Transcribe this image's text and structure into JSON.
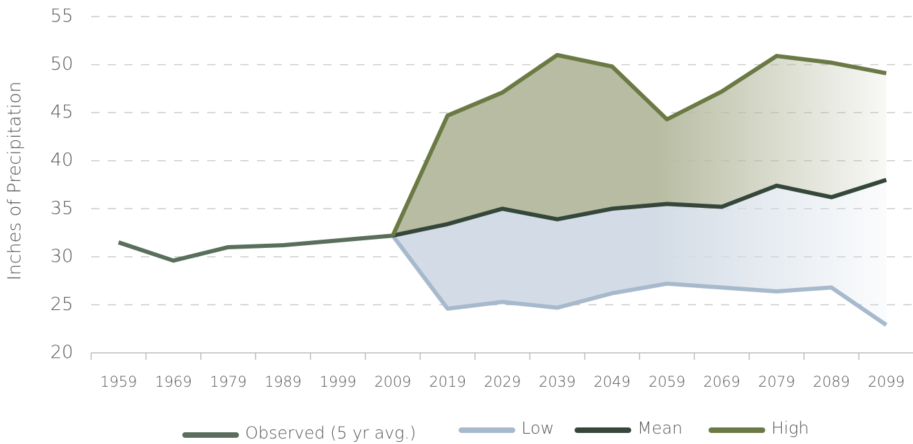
{
  "chart_data": {
    "type": "line",
    "y_label": "Inches of Precipitation",
    "categories": [
      "1959",
      "1969",
      "1979",
      "1989",
      "1999",
      "2009",
      "2019",
      "2029",
      "2039",
      "2049",
      "2059",
      "2069",
      "2079",
      "2089",
      "2099"
    ],
    "series": [
      {
        "name": "Observed (5 yr avg.)",
        "color": "#5a6e5c",
        "values": [
          31.5,
          29.6,
          31.0,
          31.2,
          31.7,
          32.2,
          null,
          null,
          null,
          null,
          null,
          null,
          null,
          null,
          null
        ]
      },
      {
        "name": "Low",
        "color": "#a7b9cc",
        "values": [
          null,
          null,
          null,
          null,
          null,
          32.2,
          24.6,
          25.3,
          24.7,
          26.2,
          27.2,
          26.8,
          26.4,
          26.8,
          22.9
        ]
      },
      {
        "name": "Mean",
        "color": "#34473a",
        "values": [
          null,
          null,
          null,
          null,
          null,
          32.2,
          33.4,
          35.0,
          33.9,
          35.0,
          35.5,
          35.2,
          37.4,
          36.2,
          38.0
        ]
      },
      {
        "name": "High",
        "color": "#6b7a44",
        "values": [
          null,
          null,
          null,
          null,
          null,
          32.2,
          44.7,
          47.1,
          51.0,
          49.8,
          44.3,
          47.2,
          50.9,
          50.2,
          49.1
        ]
      }
    ],
    "ylim": [
      20,
      55
    ],
    "yticks": [
      20,
      25,
      30,
      35,
      40,
      45,
      50,
      55
    ],
    "grid": true
  }
}
